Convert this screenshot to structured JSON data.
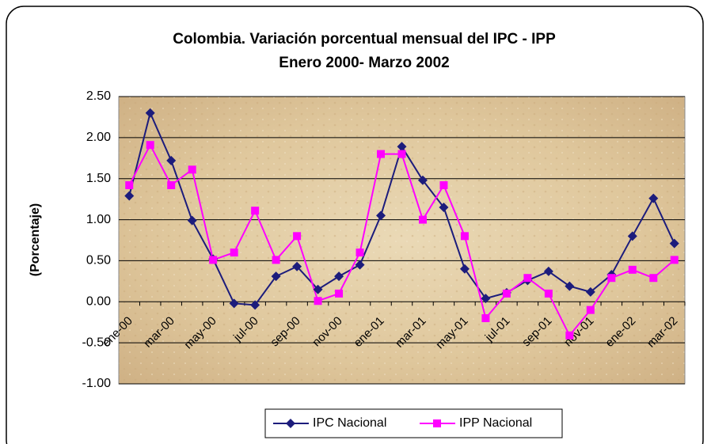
{
  "chart_data": {
    "type": "line",
    "title": "Colombia.  Variación porcentual mensual del IPC - IPP",
    "subtitle": "Enero 2000- Marzo 2002",
    "y_label": "(Porcentaje)",
    "categories": [
      "ene-00",
      null,
      "mar-00",
      null,
      "may-00",
      null,
      "jul-00",
      null,
      "sep-00",
      null,
      "nov-00",
      null,
      "ene-01",
      null,
      "mar-01",
      null,
      "may-01",
      null,
      "jul-01",
      null,
      "sep-01",
      null,
      "nov-01",
      null,
      "ene-02",
      null,
      "mar-02"
    ],
    "series": [
      {
        "name": "IPC Nacional",
        "color": "#1c1c7c",
        "marker": "diamond",
        "values": [
          1.29,
          2.3,
          1.72,
          0.99,
          0.52,
          -0.02,
          -0.04,
          0.31,
          0.43,
          0.15,
          0.31,
          0.45,
          1.05,
          1.89,
          1.48,
          1.15,
          0.4,
          0.04,
          0.11,
          0.26,
          0.37,
          0.19,
          0.12,
          0.33,
          0.8,
          1.26,
          0.71
        ]
      },
      {
        "name": "IPP Nacional",
        "color": "#ff00ff",
        "marker": "square",
        "values": [
          1.42,
          1.91,
          1.42,
          1.61,
          0.51,
          0.6,
          1.11,
          0.51,
          0.8,
          0.01,
          0.1,
          0.6,
          1.8,
          1.8,
          1.0,
          1.42,
          0.8,
          -0.2,
          0.1,
          0.29,
          0.1,
          -0.41,
          -0.1,
          0.29,
          0.39,
          0.29,
          0.51
        ]
      }
    ],
    "ylim": [
      -1.0,
      2.5
    ],
    "yticks": [
      {
        "value": -1.0,
        "label": "-1.00"
      },
      {
        "value": -0.5,
        "label": "-0.50"
      },
      {
        "value": 0,
        "label": "0.00"
      },
      {
        "value": 0.5,
        "label": "0.50"
      },
      {
        "value": 1.0,
        "label": "1.00"
      },
      {
        "value": 1.5,
        "label": "1.50"
      },
      {
        "value": 2.0,
        "label": "2.00"
      },
      {
        "value": 2.5,
        "label": "2.50"
      }
    ],
    "grid": true,
    "legend": "bottom"
  }
}
